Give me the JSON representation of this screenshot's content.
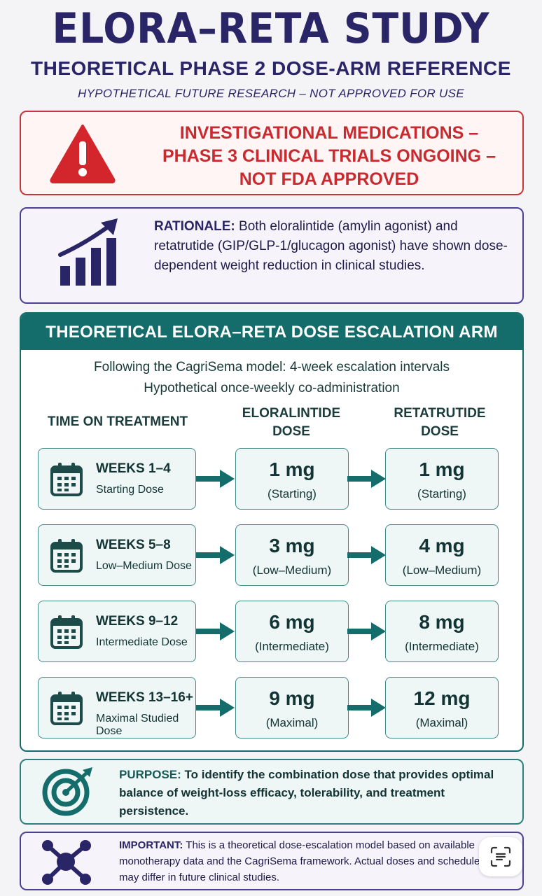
{
  "header": {
    "title": "ELORA–RETA STUDY",
    "subtitle": "THEORETICAL PHASE 2 DOSE-ARM REFERENCE",
    "tagline": "HYPOTHETICAL FUTURE RESEARCH – NOT APPROVED FOR USE"
  },
  "warning": {
    "lines": [
      "INVESTIGATIONAL MEDICATIONS –",
      "PHASE 3 CLINICAL TRIALS ONGOING –",
      "NOT FDA APPROVED"
    ],
    "icon": "warning-triangle-icon",
    "color": "#c92a2f"
  },
  "rationale": {
    "label": "RATIONALE:",
    "text": " Both eloralintide (amylin agonist) and retatrutide (GIP/GLP-1/glucagon agonist) have shown dose-dependent weight reduction in clinical studies.",
    "icon": "rising-bar-chart-icon"
  },
  "arm": {
    "header": "THEORETICAL ELORA–RETA DOSE ESCALATION ARM",
    "sub1": "Following the CagriSema model: 4-week escalation intervals",
    "sub2": "Hypothetical once-weekly co-administration",
    "col_time": "TIME ON TREATMENT",
    "col_elora_1": "ELORALINTIDE",
    "col_elora_2": "DOSE",
    "col_reta_1": "RETATRUTIDE",
    "col_reta_2": "DOSE",
    "accent": "#156d6b",
    "rows": [
      {
        "period": "WEEKS 1–4",
        "desc": "Starting Dose",
        "elora": "1 mg",
        "elora_note": "(Starting)",
        "reta": "1 mg",
        "reta_note": "(Starting)"
      },
      {
        "period": "WEEKS 5–8",
        "desc": "Low–Medium Dose",
        "elora": "3 mg",
        "elora_note": "(Low–Medium)",
        "reta": "4 mg",
        "reta_note": "(Low–Medium)"
      },
      {
        "period": "WEEKS 9–12",
        "desc": "Intermediate Dose",
        "elora": "6 mg",
        "elora_note": "(Intermediate)",
        "reta": "8 mg",
        "reta_note": "(Intermediate)"
      },
      {
        "period": "WEEKS 13–16+",
        "desc": "Maximal Studied Dose",
        "elora": "9 mg",
        "elora_note": "(Maximal)",
        "reta": "12 mg",
        "reta_note": "(Maximal)"
      }
    ]
  },
  "purpose": {
    "label": "PURPOSE:",
    "text": " To identify the combination dose that provides optimal balance of weight-loss efficacy, tolerability, and treatment persistence.",
    "icon": "target-icon"
  },
  "important": {
    "label": "IMPORTANT:",
    "text": " This is a theoretical dose-escalation model based on available monotherapy data and the CagriSema framework. Actual doses and schedules may differ in future clinical studies.",
    "icon": "molecule-network-icon"
  }
}
